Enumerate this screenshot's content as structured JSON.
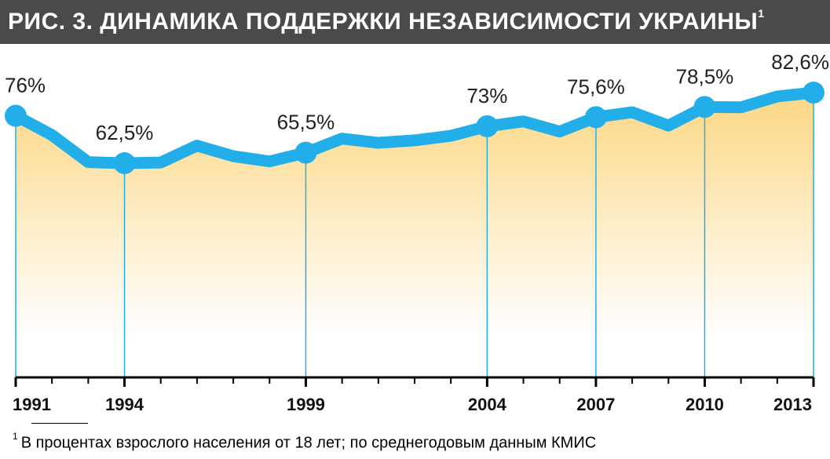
{
  "header": {
    "title": "РИС. 3. ДИНАМИКА ПОДДЕРЖКИ НЕЗАВИСИМОСТИ УКРАИНЫ",
    "footnote_mark": "1"
  },
  "footnote": {
    "mark": "1",
    "text": "В процентах взрослого населения от 18 лет; по среднегодовым данным КМИС"
  },
  "colors": {
    "line": "#22aee8",
    "guide": "#22aee8",
    "fill_top": "#fcd784",
    "fill_bottom": "#ffffff",
    "header_bg": "#4a4a4a"
  },
  "chart_data": {
    "type": "area",
    "x": [
      1991,
      1992,
      1993,
      1994,
      1995,
      1996,
      1997,
      1998,
      1999,
      2000,
      2001,
      2002,
      2003,
      2004,
      2005,
      2006,
      2007,
      2008,
      2009,
      2010,
      2011,
      2012,
      2013
    ],
    "values": [
      76,
      70.5,
      62.8,
      62.5,
      62.7,
      67.5,
      64.5,
      63,
      65.5,
      69.5,
      68.3,
      69,
      70.3,
      73,
      74.4,
      71.5,
      75.6,
      77,
      73.2,
      78.5,
      78.4,
      81.5,
      82.6
    ],
    "labeled_points": [
      {
        "x": 1991,
        "label": "76%"
      },
      {
        "x": 1994,
        "label": "62,5%"
      },
      {
        "x": 1999,
        "label": "65,5%"
      },
      {
        "x": 2004,
        "label": "73%"
      },
      {
        "x": 2007,
        "label": "75,6%"
      },
      {
        "x": 2010,
        "label": "78,5%"
      },
      {
        "x": 2013,
        "label": "82,6%"
      }
    ],
    "x_tick_labels": [
      "1991",
      "1994",
      "1999",
      "2004",
      "2007",
      "2010",
      "2013"
    ],
    "ylim": [
      0,
      100
    ],
    "grid": false,
    "legend": "none"
  }
}
